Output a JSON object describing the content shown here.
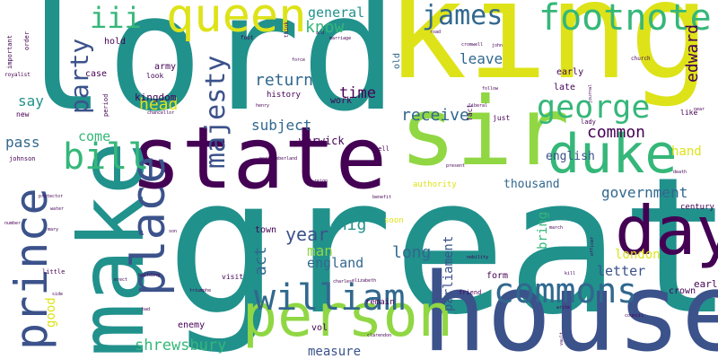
{
  "background": "#ffffff",
  "palette": {
    "purple": "#440154",
    "indigo": "#3b528b",
    "blue": "#31688e",
    "teal": "#21918c",
    "green": "#35b779",
    "lime": "#90d743",
    "yellow": "#dde318"
  },
  "words": [
    {
      "text": "lord",
      "color": "#21918c"
    },
    {
      "text": "king",
      "color": "#dde318"
    },
    {
      "text": "great",
      "color": "#21918c"
    },
    {
      "text": "house",
      "color": "#3b528b"
    },
    {
      "text": "sir",
      "color": "#90d743"
    },
    {
      "text": "state",
      "color": "#440154"
    },
    {
      "text": "make",
      "color": "#21918c"
    },
    {
      "text": "person",
      "color": "#90d743"
    },
    {
      "text": "duke",
      "color": "#35b779"
    },
    {
      "text": "queen",
      "color": "#dde318"
    },
    {
      "text": "day",
      "color": "#440154"
    },
    {
      "text": "prince",
      "color": "#3b528b"
    },
    {
      "text": "place",
      "color": "#3b528b"
    },
    {
      "text": "footnote",
      "color": "#35b779"
    },
    {
      "text": "william",
      "color": "#31688e"
    },
    {
      "text": "commons",
      "color": "#31688e"
    },
    {
      "text": "bill",
      "color": "#35b779"
    },
    {
      "text": "george",
      "color": "#35b779"
    },
    {
      "text": "majesty",
      "color": "#3b528b"
    },
    {
      "text": "james",
      "color": "#31688e"
    },
    {
      "text": "iii",
      "color": "#35b779"
    },
    {
      "text": "party",
      "color": "#3b528b"
    },
    {
      "text": "edward",
      "color": "#440154"
    },
    {
      "text": "year",
      "color": "#3b528b"
    },
    {
      "text": "head",
      "color": "#dde318"
    },
    {
      "text": "receive",
      "color": "#31688e"
    },
    {
      "text": "common",
      "color": "#440154"
    },
    {
      "text": "whig",
      "color": "#21918c"
    },
    {
      "text": "act",
      "color": "#31688e"
    },
    {
      "text": "long",
      "color": "#31688e"
    },
    {
      "text": "government",
      "color": "#31688e"
    },
    {
      "text": "return",
      "color": "#31688e"
    },
    {
      "text": "subject",
      "color": "#31688e"
    },
    {
      "text": "time",
      "color": "#440154"
    },
    {
      "text": "general",
      "color": "#21918c"
    },
    {
      "text": "know",
      "color": "#35b779"
    },
    {
      "text": "leave",
      "color": "#31688e"
    },
    {
      "text": "shrewsbury",
      "color": "#35b779"
    },
    {
      "text": "come",
      "color": "#35b779"
    },
    {
      "text": "pass",
      "color": "#31688e"
    },
    {
      "text": "say",
      "color": "#21918c"
    },
    {
      "text": "man",
      "color": "#90d743"
    },
    {
      "text": "england",
      "color": "#31688e"
    },
    {
      "text": "parliament",
      "color": "#3b528b"
    },
    {
      "text": "bring",
      "color": "#35b779"
    },
    {
      "text": "london",
      "color": "#dde318"
    },
    {
      "text": "letter",
      "color": "#3b528b"
    },
    {
      "text": "hand",
      "color": "#dde318"
    },
    {
      "text": "english",
      "color": "#3b528b"
    },
    {
      "text": "thousand",
      "color": "#31688e"
    },
    {
      "text": "measure",
      "color": "#3b528b"
    },
    {
      "text": "warwick",
      "color": "#440154"
    },
    {
      "text": "good",
      "color": "#dde318"
    },
    {
      "text": "kingdom",
      "color": "#440154"
    },
    {
      "text": "hold",
      "color": "#440154"
    },
    {
      "text": "army",
      "color": "#440154"
    },
    {
      "text": "case",
      "color": "#440154"
    },
    {
      "text": "history",
      "color": "#440154"
    },
    {
      "text": "work",
      "color": "#440154"
    },
    {
      "text": "old",
      "color": "#31688e"
    },
    {
      "text": "earl",
      "color": "#440154"
    },
    {
      "text": "crown",
      "color": "#440154"
    },
    {
      "text": "late",
      "color": "#440154"
    },
    {
      "text": "early",
      "color": "#440154"
    },
    {
      "text": "fact",
      "color": "#440154"
    },
    {
      "text": "just",
      "color": "#440154"
    },
    {
      "text": "enemy",
      "color": "#440154"
    },
    {
      "text": "vol",
      "color": "#440154"
    },
    {
      "text": "form",
      "color": "#440154"
    },
    {
      "text": "town",
      "color": "#440154"
    },
    {
      "text": "visit",
      "color": "#440154"
    },
    {
      "text": "authority",
      "color": "#dde318"
    },
    {
      "text": "soon",
      "color": "#dde318"
    },
    {
      "text": "remain",
      "color": "#440154"
    },
    {
      "text": "century",
      "color": "#440154"
    },
    {
      "text": "like",
      "color": "#440154"
    },
    {
      "text": "lady",
      "color": "#440154"
    },
    {
      "text": "friend",
      "color": "#440154"
    },
    {
      "text": "new",
      "color": "#440154"
    },
    {
      "text": "look",
      "color": "#440154"
    },
    {
      "text": "period",
      "color": "#440154"
    },
    {
      "text": "tell",
      "color": "#440154"
    },
    {
      "text": "little",
      "color": "#440154"
    },
    {
      "text": "johnson",
      "color": "#440154"
    },
    {
      "text": "important",
      "color": "#440154"
    },
    {
      "text": "order",
      "color": "#440154"
    },
    {
      "text": "royalist",
      "color": "#440154"
    },
    {
      "text": "foot",
      "color": "#440154"
    },
    {
      "text": "think",
      "color": "#440154"
    },
    {
      "text": "force",
      "color": "#440154"
    },
    {
      "text": "marriage",
      "color": "#440154"
    },
    {
      "text": "a.d",
      "color": "#440154"
    },
    {
      "text": "road",
      "color": "#440154"
    },
    {
      "text": "cromwell",
      "color": "#440154"
    },
    {
      "text": "john",
      "color": "#440154"
    },
    {
      "text": "church",
      "color": "#440154"
    },
    {
      "text": "journal",
      "color": "#440154"
    },
    {
      "text": "follow",
      "color": "#440154"
    },
    {
      "text": "liberal",
      "color": "#440154"
    },
    {
      "text": "henry",
      "color": "#440154"
    },
    {
      "text": "march",
      "color": "#440154"
    },
    {
      "text": "officer",
      "color": "#440154"
    },
    {
      "text": "benefit",
      "color": "#440154"
    },
    {
      "text": "present",
      "color": "#440154"
    },
    {
      "text": "northumberland",
      "color": "#440154"
    },
    {
      "text": "protector",
      "color": "#440154"
    },
    {
      "text": "water",
      "color": "#440154"
    },
    {
      "text": "number",
      "color": "#440154"
    },
    {
      "text": "mary",
      "color": "#440154"
    },
    {
      "text": "son",
      "color": "#440154"
    },
    {
      "text": "building",
      "color": "#440154"
    },
    {
      "text": "erect",
      "color": "#440154"
    },
    {
      "text": "charles",
      "color": "#440154"
    },
    {
      "text": "elizabeth",
      "color": "#440154"
    },
    {
      "text": "clarendon",
      "color": "#440154"
    },
    {
      "text": "write",
      "color": "#440154"
    },
    {
      "text": "council",
      "color": "#440154"
    },
    {
      "text": "vault",
      "color": "#440154"
    },
    {
      "text": "kill",
      "color": "#440154"
    },
    {
      "text": "chancellor",
      "color": "#440154"
    },
    {
      "text": "triumphe",
      "color": "#440154"
    },
    {
      "text": "side",
      "color": "#440154"
    },
    {
      "text": "bad",
      "color": "#440154"
    },
    {
      "text": "near",
      "color": "#440154"
    },
    {
      "text": "death",
      "color": "#440154"
    },
    {
      "text": "nobility",
      "color": "#440154"
    },
    {
      "text": "reign",
      "color": "#440154"
    }
  ]
}
